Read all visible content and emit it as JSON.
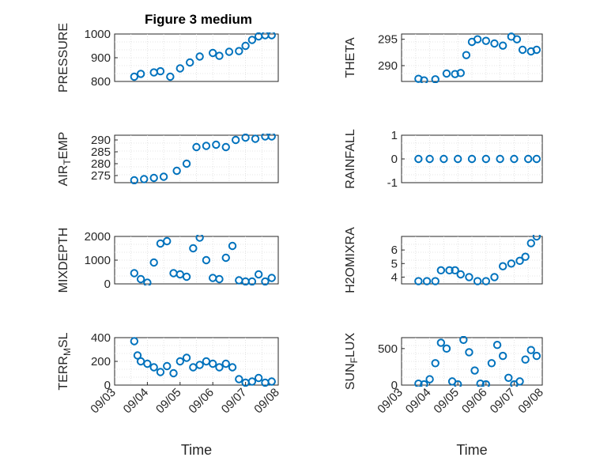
{
  "figure": {
    "title": "Figure 3 medium"
  },
  "colors": {
    "marker": "#0072BD",
    "axis": "#262626"
  },
  "chart_data": [
    {
      "type": "scatter",
      "ylabel": "PRESSURE",
      "xlabel": "",
      "xlim": [
        0,
        5
      ],
      "ylim": [
        800,
        1000
      ],
      "yticks": [
        800,
        900,
        1000
      ],
      "yticklabels": [
        "800",
        "900",
        "1000"
      ],
      "xticks": [],
      "xticklabels": [],
      "series": [
        {
          "x": [
            0.6,
            0.8,
            1.2,
            1.4,
            1.7,
            2.0,
            2.3,
            2.6,
            3.0,
            3.2,
            3.5,
            3.8,
            4.0,
            4.2,
            4.4,
            4.6,
            4.8
          ],
          "y": [
            820,
            832,
            838,
            843,
            820,
            855,
            880,
            905,
            920,
            908,
            925,
            928,
            950,
            975,
            990,
            995,
            995
          ]
        }
      ]
    },
    {
      "type": "scatter",
      "ylabel": "THETA",
      "xlabel": "",
      "xlim": [
        0,
        5
      ],
      "ylim": [
        287,
        296
      ],
      "yticks": [
        290,
        295
      ],
      "yticklabels": [
        "290",
        "295"
      ],
      "xticks": [],
      "xticklabels": [],
      "series": [
        {
          "x": [
            0.6,
            0.8,
            1.2,
            1.6,
            1.9,
            2.1,
            2.3,
            2.5,
            2.7,
            3.0,
            3.3,
            3.6,
            3.9,
            4.1,
            4.3,
            4.6,
            4.8
          ],
          "y": [
            287.5,
            287.2,
            287.4,
            288.5,
            288.4,
            288.6,
            292.0,
            294.5,
            295.0,
            294.7,
            294.2,
            293.8,
            295.5,
            295.0,
            293.0,
            292.7,
            293.0
          ]
        }
      ]
    },
    {
      "type": "scatter",
      "ylabel": "AIR_TEMP",
      "xlabel": "",
      "xlim": [
        0,
        5
      ],
      "ylim": [
        272,
        292
      ],
      "yticks": [
        275,
        280,
        285,
        290
      ],
      "yticklabels": [
        "275",
        "280",
        "285",
        "290"
      ],
      "xticks": [],
      "xticklabels": [],
      "series": [
        {
          "x": [
            0.6,
            0.9,
            1.2,
            1.5,
            1.9,
            2.2,
            2.5,
            2.8,
            3.1,
            3.4,
            3.7,
            4.0,
            4.3,
            4.6,
            4.8
          ],
          "y": [
            273,
            273.5,
            274,
            274.5,
            277,
            280,
            287,
            287.5,
            288,
            287,
            290,
            291,
            290.5,
            291.5,
            291.5
          ]
        }
      ]
    },
    {
      "type": "scatter",
      "ylabel": "RAINFALL",
      "xlabel": "",
      "xlim": [
        0,
        5
      ],
      "ylim": [
        -1,
        1
      ],
      "yticks": [
        -1,
        0,
        1
      ],
      "yticklabels": [
        "-1",
        "0",
        "1"
      ],
      "xticks": [],
      "xticklabels": [],
      "series": [
        {
          "x": [
            0.6,
            1.0,
            1.5,
            2.0,
            2.5,
            3.0,
            3.5,
            4.0,
            4.5,
            4.8
          ],
          "y": [
            0,
            0,
            0,
            0,
            0,
            0,
            0,
            0,
            0,
            0
          ]
        }
      ]
    },
    {
      "type": "scatter",
      "ylabel": "MIXDEPTH",
      "xlabel": "",
      "xlim": [
        0,
        5
      ],
      "ylim": [
        0,
        2000
      ],
      "yticks": [
        0,
        1000,
        2000
      ],
      "yticklabels": [
        "0",
        "1000",
        "2000"
      ],
      "xticks": [],
      "xticklabels": [],
      "series": [
        {
          "x": [
            0.6,
            0.8,
            1.0,
            1.2,
            1.4,
            1.6,
            1.8,
            2.0,
            2.2,
            2.4,
            2.6,
            2.8,
            3.0,
            3.2,
            3.4,
            3.6,
            3.8,
            4.0,
            4.2,
            4.4,
            4.6,
            4.8
          ],
          "y": [
            450,
            200,
            50,
            900,
            1700,
            1800,
            450,
            400,
            300,
            1500,
            1950,
            1000,
            250,
            200,
            1100,
            1600,
            150,
            100,
            100,
            400,
            100,
            250
          ]
        }
      ]
    },
    {
      "type": "scatter",
      "ylabel": "H2OMIXRA",
      "xlabel": "",
      "xlim": [
        0,
        5
      ],
      "ylim": [
        3.5,
        7
      ],
      "yticks": [
        4,
        5,
        6
      ],
      "yticklabels": [
        "4",
        "5",
        "6"
      ],
      "xticks": [],
      "xticklabels": [],
      "series": [
        {
          "x": [
            0.6,
            0.9,
            1.2,
            1.4,
            1.7,
            1.9,
            2.1,
            2.4,
            2.7,
            3.0,
            3.3,
            3.6,
            3.9,
            4.2,
            4.4,
            4.6,
            4.8
          ],
          "y": [
            3.7,
            3.7,
            3.7,
            4.5,
            4.5,
            4.5,
            4.2,
            4.0,
            3.7,
            3.7,
            4.0,
            4.8,
            5.0,
            5.2,
            5.5,
            6.5,
            7.0
          ]
        }
      ]
    },
    {
      "type": "scatter",
      "ylabel": "TERR_MSL",
      "xlabel": "Time",
      "xlim": [
        0,
        5
      ],
      "ylim": [
        0,
        400
      ],
      "yticks": [
        0,
        200,
        400
      ],
      "yticklabels": [
        "0",
        "200",
        "400"
      ],
      "xticks": [
        0,
        1,
        2,
        3,
        4,
        5
      ],
      "xticklabels": [
        "09/03",
        "09/04",
        "09/05",
        "09/06",
        "09/07",
        "09/08"
      ],
      "series": [
        {
          "x": [
            0.6,
            0.7,
            0.8,
            1.0,
            1.2,
            1.4,
            1.6,
            1.8,
            2.0,
            2.2,
            2.4,
            2.6,
            2.8,
            3.0,
            3.2,
            3.4,
            3.6,
            3.8,
            4.0,
            4.2,
            4.4,
            4.6,
            4.8
          ],
          "y": [
            370,
            250,
            200,
            180,
            150,
            110,
            160,
            100,
            200,
            230,
            150,
            170,
            200,
            180,
            150,
            180,
            150,
            50,
            20,
            30,
            60,
            20,
            30
          ]
        }
      ]
    },
    {
      "type": "scatter",
      "ylabel": "SUN_FLUX",
      "xlabel": "Time",
      "xlim": [
        0,
        5
      ],
      "ylim": [
        0,
        650
      ],
      "yticks": [
        0,
        500
      ],
      "yticklabels": [
        "0",
        "500"
      ],
      "xticks": [
        0,
        1,
        2,
        3,
        4,
        5
      ],
      "xticklabels": [
        "09/03",
        "09/04",
        "09/05",
        "09/06",
        "09/07",
        "09/08"
      ],
      "series": [
        {
          "x": [
            0.6,
            0.8,
            1.0,
            1.2,
            1.4,
            1.6,
            1.8,
            2.0,
            2.2,
            2.4,
            2.6,
            2.8,
            3.0,
            3.2,
            3.4,
            3.6,
            3.8,
            4.0,
            4.2,
            4.4,
            4.6,
            4.8
          ],
          "y": [
            20,
            10,
            80,
            300,
            580,
            500,
            50,
            10,
            620,
            450,
            200,
            20,
            10,
            300,
            550,
            400,
            100,
            10,
            50,
            350,
            480,
            400
          ]
        }
      ]
    }
  ]
}
